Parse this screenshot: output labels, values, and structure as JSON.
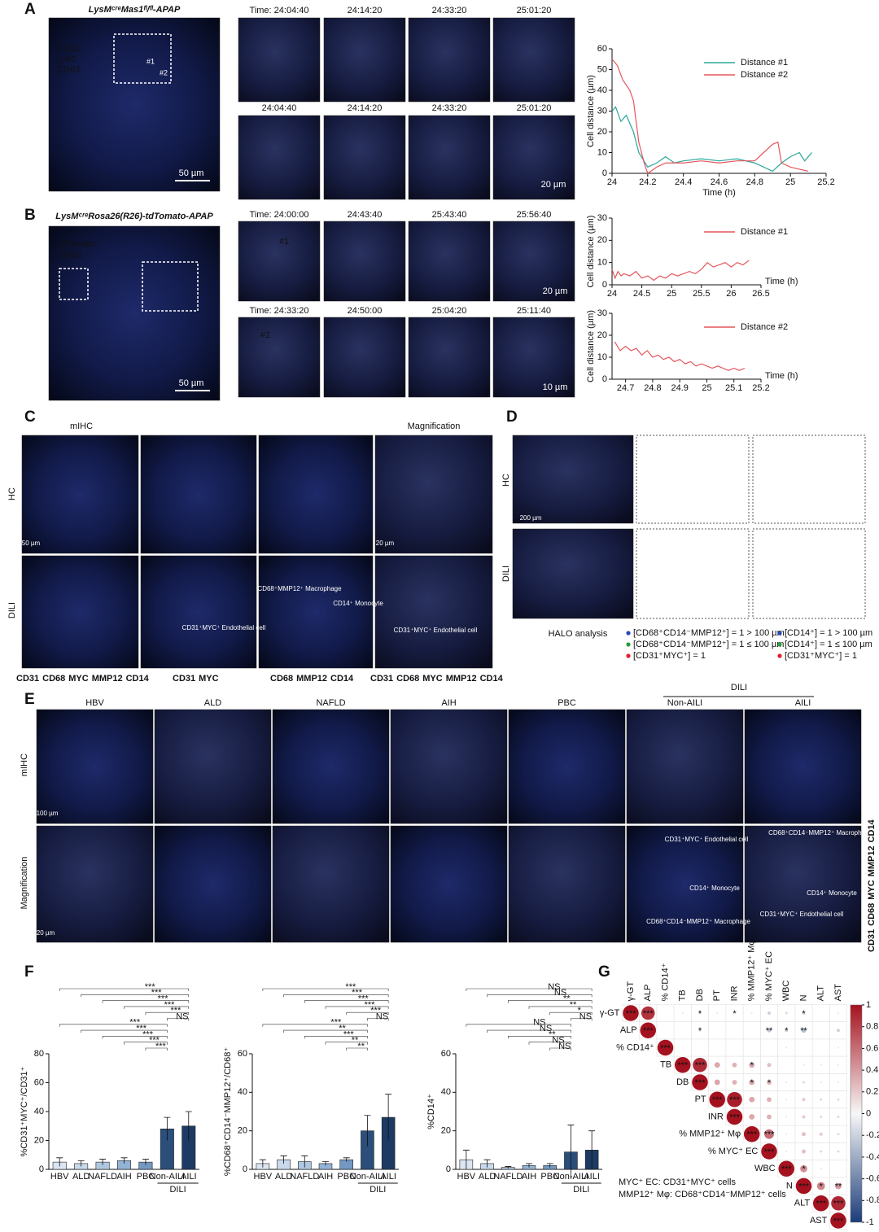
{
  "panels": {
    "A": {
      "letter": "A",
      "title": "LysMᶜʳᵉMas1ᶠˡ/ᶠˡ-APAP",
      "channels": [
        {
          "text": "CD31",
          "color": "#4f73e0"
        },
        {
          "text": "Ly6C",
          "color": "#e8323c"
        },
        {
          "text": "CD63",
          "color": "#41c04c"
        }
      ],
      "scale": "50 µm",
      "times": [
        [
          "Time: 24:04:40",
          "24:14:20",
          "24:33:20",
          "25:01:20"
        ],
        [
          "24:04:40",
          "24:14:20",
          "24:33:20",
          "25:01:20"
        ]
      ],
      "small_scale": "20 µm",
      "cell_ids": [
        "#1",
        "#2"
      ]
    },
    "B": {
      "letter": "B",
      "title": "LysMᶜʳᵉRosa26(R26)-tdTomato-APAP",
      "channels": [
        {
          "text": "tdTomato",
          "color": "#e8323c"
        },
        {
          "text": "CD63",
          "color": "#41c04c"
        }
      ],
      "scale": "50 µm",
      "times": [
        [
          "Time: 24:00:00",
          "24:43:40",
          "25:43:40",
          "25:56:40"
        ],
        [
          "Time: 24:33:20",
          "24:50:00",
          "25:04:20",
          "25:11:40"
        ]
      ],
      "small_scales": [
        "20 µm",
        "10 µm"
      ],
      "cell_ids": [
        "#1",
        "#2"
      ]
    },
    "C": {
      "letter": "C",
      "headers": [
        "mIHC",
        "Magnification"
      ],
      "rows": [
        "HC",
        "DILI"
      ],
      "scales": [
        "50 µm",
        "20 µm"
      ],
      "annotations": [
        "CD31⁺MYC⁺ Endothelial cell",
        "CD68⁺MMP12⁺ Macrophage",
        "CD14⁺ Monocyte",
        "CD31⁺MYC⁺ Endothelial cell"
      ],
      "channel_legends": [
        [
          {
            "text": "CD31",
            "color": "#2fae3a"
          },
          {
            "text": "CD68",
            "color": "#e0b800"
          },
          {
            "text": "MYC",
            "color": "#b04fc8"
          },
          {
            "text": "MMP12",
            "color": "#e0202a"
          },
          {
            "text": "CD14",
            "color": "#e8632a"
          }
        ],
        [
          {
            "text": "CD31",
            "color": "#2fae3a"
          },
          {
            "text": "MYC",
            "color": "#b04fc8"
          }
        ],
        [
          {
            "text": "CD68",
            "color": "#e0b800"
          },
          {
            "text": "MMP12",
            "color": "#e0202a"
          },
          {
            "text": "CD14",
            "color": "#e8632a"
          }
        ],
        [
          {
            "text": "CD31",
            "color": "#2fae3a"
          },
          {
            "text": "CD68",
            "color": "#e0b800"
          },
          {
            "text": "MYC",
            "color": "#b04fc8"
          },
          {
            "text": "MMP12",
            "color": "#e0202a"
          },
          {
            "text": "CD14",
            "color": "#e8632a"
          }
        ]
      ]
    },
    "D": {
      "letter": "D",
      "rows": [
        "HC",
        "DILI"
      ],
      "scale": "200 µm",
      "caption": "HALO analysis",
      "legend": [
        {
          "text": "[CD68⁺CD14⁻MMP12⁺] = 1 > 100 µm",
          "color": "#2748b8"
        },
        {
          "text": "[CD68⁺CD14⁻MMP12⁺] = 1 ≤ 100 µm",
          "color": "#2e9a3c"
        },
        {
          "text": "[CD31⁺MYC⁺] = 1",
          "color": "#e0202a"
        },
        {
          "text": "[CD14⁺] = 1 > 100 µm",
          "color": "#2748b8"
        },
        {
          "text": "[CD14⁺] = 1 ≤ 100 µm",
          "color": "#2e9a3c"
        },
        {
          "text": "[CD31⁺MYC⁺] = 1",
          "color": "#e0202a"
        }
      ]
    },
    "E": {
      "letter": "E",
      "columns": [
        "HBV",
        "ALD",
        "NAFLD",
        "AIH",
        "PBC",
        "Non-AILI",
        "AILI"
      ],
      "group": "DILI",
      "rows": [
        "mIHC",
        "Magnification"
      ],
      "scales": [
        "100 µm",
        "20 µm"
      ],
      "annotations": [
        "CD31⁺MYC⁺ Endothelial cell",
        "CD14⁺ Monocyte",
        "CD68⁺CD14⁻MMP12⁺ Macrophage",
        "CD68⁺CD14⁻MMP12⁺ Macrophage",
        "CD14⁺ Monocyte",
        "CD31⁺MYC⁺ Endothelial cell"
      ],
      "channels": [
        {
          "text": "CD31",
          "color": "#2fae3a"
        },
        {
          "text": "CD68",
          "color": "#e0b800"
        },
        {
          "text": "MYC",
          "color": "#b04fc8"
        },
        {
          "text": "MMP12",
          "color": "#e0202a"
        },
        {
          "text": "CD14",
          "color": "#e8632a"
        }
      ]
    },
    "F": {
      "letter": "F"
    },
    "G": {
      "letter": "G",
      "notes": [
        "MYC⁺ EC: CD31⁺MYC⁺ cells",
        "MMP12⁺ Mφ: CD68⁺CD14⁻MMP12⁺ cells"
      ]
    }
  },
  "chart_data": [
    {
      "type": "line",
      "xlabel": "Time (h)",
      "ylabel": "Cell distance (µm)",
      "xlim": [
        24,
        25.2
      ],
      "xticks": [
        24,
        24.2,
        24.4,
        24.6,
        24.8,
        25,
        25.2
      ],
      "ylim": [
        0,
        60
      ],
      "yticks": [
        0,
        10,
        20,
        30,
        40,
        50,
        60
      ],
      "legend": "upper right",
      "series": [
        {
          "name": "Distance #1",
          "color": "#2aa79b",
          "x": [
            24,
            24.02,
            24.05,
            24.08,
            24.12,
            24.15,
            24.2,
            24.25,
            24.3,
            24.35,
            24.4,
            24.5,
            24.6,
            24.7,
            24.8,
            24.85,
            24.9,
            24.95,
            25,
            25.05,
            25.08,
            25.12
          ],
          "values": [
            30,
            32,
            25,
            28,
            20,
            10,
            3,
            5,
            8,
            5,
            6,
            7,
            6,
            7,
            5,
            3,
            1,
            5,
            8,
            10,
            6,
            10
          ]
        },
        {
          "name": "Distance #2",
          "color": "#e5565c",
          "x": [
            24,
            24.03,
            24.06,
            24.1,
            24.12,
            24.15,
            24.18,
            24.2,
            24.25,
            24.3,
            24.4,
            24.5,
            24.6,
            24.7,
            24.8,
            24.85,
            24.9,
            24.93,
            24.95,
            25,
            25.05,
            25.1
          ],
          "values": [
            55,
            52,
            45,
            40,
            35,
            15,
            5,
            0,
            3,
            5,
            5,
            6,
            5,
            6,
            6,
            10,
            14,
            15,
            5,
            3,
            2,
            1
          ]
        }
      ]
    },
    {
      "type": "line",
      "xlabel": "Time (h)",
      "ylabel": "Cell distance (µm)",
      "xlim": [
        24,
        26.5
      ],
      "xticks": [
        24,
        24.5,
        25,
        25.5,
        26,
        26.5
      ],
      "ylim": [
        0,
        30
      ],
      "yticks": [
        0,
        10,
        20,
        30
      ],
      "legend": "upper right",
      "series": [
        {
          "name": "Distance #1",
          "color": "#e5565c",
          "x": [
            24,
            24.05,
            24.1,
            24.15,
            24.2,
            24.3,
            24.4,
            24.5,
            24.6,
            24.7,
            24.8,
            24.9,
            25,
            25.1,
            25.2,
            25.3,
            25.4,
            25.5,
            25.6,
            25.7,
            25.8,
            25.9,
            26,
            26.1,
            26.2,
            26.3
          ],
          "values": [
            7,
            3,
            6,
            4,
            5,
            4,
            6,
            3,
            4,
            2,
            4,
            3,
            5,
            4,
            5,
            6,
            5,
            7,
            10,
            8,
            9,
            10,
            8,
            10,
            9,
            11
          ]
        }
      ]
    },
    {
      "type": "line",
      "xlabel": "Time (h)",
      "ylabel": "Cell distance (µm)",
      "xlim": [
        24.65,
        25.2
      ],
      "xticks": [
        24.7,
        24.8,
        24.9,
        25,
        25.1,
        25.2
      ],
      "ylim": [
        0,
        30
      ],
      "yticks": [
        0,
        10,
        20,
        30
      ],
      "legend": "upper right",
      "series": [
        {
          "name": "Distance #2",
          "color": "#e5565c",
          "x": [
            24.66,
            24.68,
            24.7,
            24.72,
            24.74,
            24.76,
            24.78,
            24.8,
            24.82,
            24.84,
            24.86,
            24.88,
            24.9,
            24.92,
            24.94,
            24.96,
            24.98,
            25,
            25.02,
            25.04,
            25.06,
            25.08,
            25.1,
            25.12,
            25.14
          ],
          "values": [
            17,
            13,
            15,
            13,
            14,
            11,
            13,
            10,
            11,
            9,
            10,
            8,
            9,
            7,
            8,
            6,
            7,
            6,
            5,
            6,
            5,
            4,
            5,
            4,
            5
          ]
        }
      ]
    },
    {
      "type": "bar",
      "ylabel": "%CD31⁺MYC⁺/CD31⁺",
      "categories": [
        "HBV",
        "ALD",
        "NAFLD",
        "AIH",
        "PBC",
        "Non-AILI",
        "AILI"
      ],
      "group": "DILI",
      "values": [
        5,
        4,
        5,
        6,
        5,
        28,
        30
      ],
      "errors": [
        3,
        2,
        2,
        2,
        2,
        8,
        10
      ],
      "colors": [
        "#dbe6f2",
        "#c8d9ec",
        "#afc8e2",
        "#93b3d6",
        "#7398c2",
        "#2b4e7a",
        "#1c3a63"
      ],
      "ylim": [
        0,
        80
      ],
      "yticks": [
        0,
        20,
        40,
        60,
        80
      ],
      "significance": [
        "***",
        "***",
        "***",
        "***",
        "***",
        "NS",
        "***",
        "***",
        "***",
        "***",
        "***"
      ]
    },
    {
      "type": "bar",
      "ylabel": "%CD68⁺CD14⁻MMP12⁺/CD68⁺",
      "categories": [
        "HBV",
        "ALD",
        "NAFLD",
        "AIH",
        "PBC",
        "Non-AILI",
        "AILI"
      ],
      "group": "DILI",
      "values": [
        3,
        5,
        4,
        3,
        5,
        20,
        27
      ],
      "errors": [
        2,
        2,
        3,
        1,
        1,
        8,
        12
      ],
      "colors": [
        "#dbe6f2",
        "#c8d9ec",
        "#afc8e2",
        "#93b3d6",
        "#7398c2",
        "#2b4e7a",
        "#1c3a63"
      ],
      "ylim": [
        0,
        60
      ],
      "yticks": [
        0,
        20,
        40,
        60
      ],
      "significance": [
        "***",
        "***",
        "***",
        "***",
        "***",
        "NS",
        "***",
        "**",
        "***",
        "**",
        "**"
      ]
    },
    {
      "type": "bar",
      "ylabel": "%CD14⁺",
      "categories": [
        "HBV",
        "ALD",
        "NAFLD",
        "AIH",
        "PBC",
        "Non-AILI",
        "AILI"
      ],
      "group": "DILI",
      "values": [
        5,
        3,
        1,
        2,
        2,
        9,
        10
      ],
      "errors": [
        5,
        2,
        0.5,
        1,
        1,
        14,
        10
      ],
      "colors": [
        "#dbe6f2",
        "#c8d9ec",
        "#afc8e2",
        "#93b3d6",
        "#7398c2",
        "#2b4e7a",
        "#1c3a63"
      ],
      "ylim": [
        0,
        60
      ],
      "yticks": [
        0,
        20,
        40,
        60
      ],
      "significance": [
        "NS",
        "NS",
        "**",
        "**",
        "*",
        "NS",
        "NS",
        "NS",
        "**",
        "NS",
        "NS"
      ]
    },
    {
      "type": "corrplot",
      "labels": [
        "γ-GT",
        "ALP",
        "% CD14⁺",
        "TB",
        "DB",
        "PT",
        "INR",
        "% MMP12⁺ Mφ",
        "% MYC⁺ EC",
        "WBC",
        "N",
        "ALT",
        "AST"
      ],
      "values": [
        [
          1,
          0.85,
          0,
          -0.1,
          -0.15,
          -0.1,
          -0.1,
          -0.1,
          -0.2,
          -0.15,
          -0.2,
          -0.05,
          -0.1
        ],
        [
          null,
          1,
          0.05,
          -0.05,
          -0.15,
          -0.05,
          -0.05,
          -0.05,
          -0.25,
          -0.2,
          -0.3,
          -0.05,
          -0.2
        ],
        [
          null,
          null,
          1,
          0.05,
          0.02,
          0.02,
          0.05,
          0.05,
          0.05,
          0.1,
          0.05,
          0.02,
          -0.1
        ],
        [
          null,
          null,
          null,
          1,
          0.9,
          0.35,
          0.3,
          0.35,
          0.25,
          0.05,
          0.1,
          0.1,
          0.1
        ],
        [
          null,
          null,
          null,
          null,
          1,
          0.35,
          0.3,
          0.35,
          0.3,
          0.1,
          0.15,
          0.1,
          0.1
        ],
        [
          null,
          null,
          null,
          null,
          null,
          1,
          0.95,
          0.35,
          0.3,
          0.1,
          0.2,
          0.15,
          0.15
        ],
        [
          null,
          null,
          null,
          null,
          null,
          null,
          1,
          0.35,
          0.3,
          0.1,
          0.2,
          0.15,
          0.15
        ],
        [
          null,
          null,
          null,
          null,
          null,
          null,
          null,
          1,
          0.6,
          0.1,
          0.25,
          0.2,
          0.15
        ],
        [
          null,
          null,
          null,
          null,
          null,
          null,
          null,
          null,
          1,
          0.1,
          0.25,
          0.15,
          0.15
        ],
        [
          null,
          null,
          null,
          null,
          null,
          null,
          null,
          null,
          null,
          1,
          0.45,
          0.1,
          0.05
        ],
        [
          null,
          null,
          null,
          null,
          null,
          null,
          null,
          null,
          null,
          null,
          1,
          0.5,
          0.4
        ],
        [
          null,
          null,
          null,
          null,
          null,
          null,
          null,
          null,
          null,
          null,
          null,
          1,
          0.9
        ],
        [
          null,
          null,
          null,
          null,
          null,
          null,
          null,
          null,
          null,
          null,
          null,
          null,
          1
        ]
      ],
      "stars": [
        [
          "***",
          "***",
          null,
          null,
          "*",
          null,
          "*",
          null,
          null,
          null,
          "*",
          null,
          null
        ],
        [
          null,
          "***",
          null,
          null,
          "*",
          null,
          null,
          null,
          "**",
          "*",
          "**",
          null,
          null
        ],
        [
          null,
          null,
          "***",
          null,
          null,
          null,
          null,
          null,
          null,
          null,
          null,
          null,
          null
        ],
        [
          null,
          null,
          null,
          "***",
          "***",
          null,
          null,
          "*",
          null,
          null,
          null,
          null,
          null
        ],
        [
          null,
          null,
          null,
          null,
          "***",
          null,
          null,
          "*",
          "*",
          null,
          null,
          null,
          null
        ],
        [
          null,
          null,
          null,
          null,
          null,
          "***",
          "***",
          null,
          null,
          null,
          null,
          null,
          null
        ],
        [
          null,
          null,
          null,
          null,
          null,
          null,
          "***",
          null,
          null,
          null,
          null,
          null,
          null
        ],
        [
          null,
          null,
          null,
          null,
          null,
          null,
          null,
          "***",
          "***",
          null,
          null,
          null,
          null
        ],
        [
          null,
          null,
          null,
          null,
          null,
          null,
          null,
          null,
          "***",
          null,
          null,
          null,
          null
        ],
        [
          null,
          null,
          null,
          null,
          null,
          null,
          null,
          null,
          null,
          "***",
          "*",
          null,
          null
        ],
        [
          null,
          null,
          null,
          null,
          null,
          null,
          null,
          null,
          null,
          null,
          "***",
          "*",
          "**"
        ],
        [
          null,
          null,
          null,
          null,
          null,
          null,
          null,
          null,
          null,
          null,
          null,
          "***",
          "***"
        ],
        [
          null,
          null,
          null,
          null,
          null,
          null,
          null,
          null,
          null,
          null,
          null,
          null,
          "***"
        ]
      ],
      "colorscale": [
        "#1b3c7a",
        "#f7f7f7",
        "#a5121f"
      ],
      "clim": [
        -1,
        1
      ],
      "cticks": [
        1,
        0.8,
        0.6,
        0.4,
        0.2,
        0,
        -0.2,
        -0.4,
        -0.6,
        -0.8,
        -1
      ]
    }
  ]
}
